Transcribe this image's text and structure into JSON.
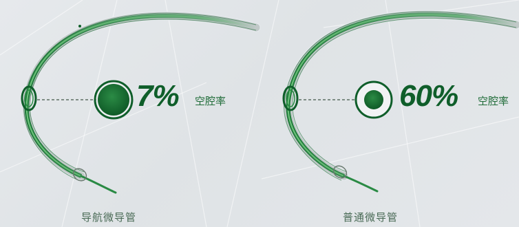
{
  "panels": [
    {
      "percent": "7%",
      "suffix": "空腔率",
      "caption": "导航微导管"
    },
    {
      "percent": "60%",
      "suffix": "空腔率",
      "caption": "普通微导管"
    }
  ],
  "colors": {
    "background": "#e3e6e9",
    "dark_green": "#0f5e2a",
    "mid_green": "#2a8a44",
    "light_green": "#5dbb6e",
    "caption": "#4a6b56"
  }
}
